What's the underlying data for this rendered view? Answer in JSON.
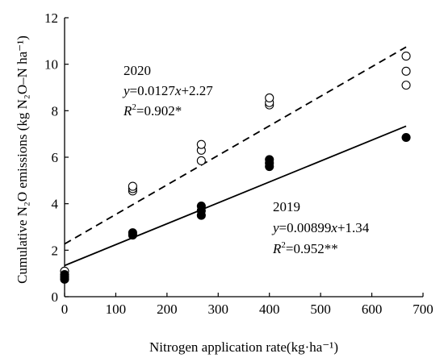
{
  "chart_data": {
    "type": "scatter",
    "xlabel": "Nitrogen application rate(kg·ha⁻¹)",
    "ylabel": "Cumulative N₂O emissions (kg N₂O–N ha⁻¹)",
    "xlim": [
      0,
      700
    ],
    "ylim": [
      0,
      12
    ],
    "xticks": [
      0,
      100,
      200,
      300,
      400,
      500,
      600,
      700
    ],
    "yticks": [
      0,
      2,
      4,
      6,
      8,
      10,
      12
    ],
    "x_tick_labels": [
      "0",
      "100",
      "200",
      "300",
      "400",
      "500",
      "600",
      "700"
    ],
    "y_tick_labels": [
      "0",
      "2",
      "4",
      "6",
      "8",
      "10",
      "12"
    ],
    "grid": false,
    "series": [
      {
        "name": "2020",
        "marker": "open-circle",
        "line_style": "dashed",
        "color": "#000000",
        "points": [
          {
            "x": 0,
            "y": 1.1
          },
          {
            "x": 133,
            "y": 4.55
          },
          {
            "x": 133,
            "y": 4.65
          },
          {
            "x": 133,
            "y": 4.75
          },
          {
            "x": 267,
            "y": 5.85
          },
          {
            "x": 267,
            "y": 6.3
          },
          {
            "x": 267,
            "y": 6.55
          },
          {
            "x": 400,
            "y": 8.25
          },
          {
            "x": 400,
            "y": 8.35
          },
          {
            "x": 400,
            "y": 8.55
          },
          {
            "x": 667,
            "y": 9.1
          },
          {
            "x": 667,
            "y": 9.7
          },
          {
            "x": 667,
            "y": 10.35
          }
        ],
        "fit": {
          "slope": 0.0127,
          "intercept": 2.27,
          "x_range": [
            0,
            667
          ]
        },
        "annotation": {
          "year": "2020",
          "eq_y": "y",
          "eq_mid": "=0.0127",
          "eq_x": "x",
          "eq_tail": "+2.27",
          "r_label": "R",
          "r_sup": "2",
          "r_tail": "=0.902*"
        }
      },
      {
        "name": "2019",
        "marker": "filled-circle",
        "line_style": "solid",
        "color": "#000000",
        "points": [
          {
            "x": 0,
            "y": 0.75
          },
          {
            "x": 0,
            "y": 0.85
          },
          {
            "x": 0,
            "y": 0.95
          },
          {
            "x": 133,
            "y": 2.65
          },
          {
            "x": 133,
            "y": 2.75
          },
          {
            "x": 267,
            "y": 3.5
          },
          {
            "x": 267,
            "y": 3.7
          },
          {
            "x": 267,
            "y": 3.9
          },
          {
            "x": 400,
            "y": 5.6
          },
          {
            "x": 400,
            "y": 5.75
          },
          {
            "x": 400,
            "y": 5.9
          },
          {
            "x": 667,
            "y": 6.85
          }
        ],
        "fit": {
          "slope": 0.00899,
          "intercept": 1.34,
          "x_range": [
            0,
            667
          ]
        },
        "annotation": {
          "year": "2019",
          "eq_y": "y",
          "eq_mid": "=0.00899",
          "eq_x": "x",
          "eq_tail": "+1.34",
          "r_label": "R",
          "r_sup": "2",
          "r_tail": "=0.952**"
        }
      }
    ]
  }
}
